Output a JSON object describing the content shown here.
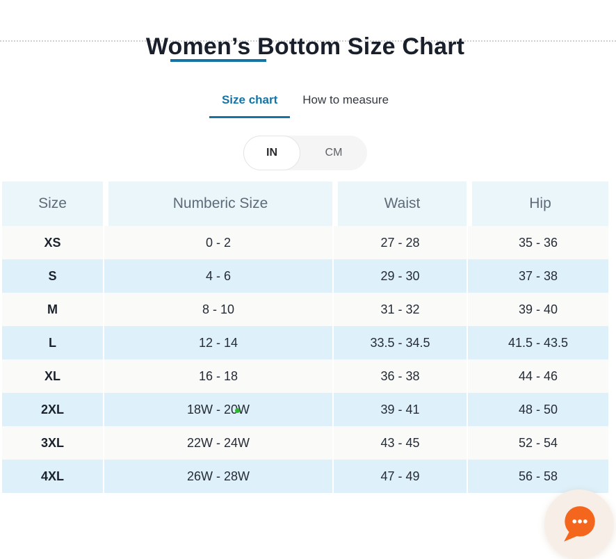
{
  "page": {
    "title": "Women’s Bottom Size Chart"
  },
  "tabs": [
    {
      "label": "Size chart",
      "active": true
    },
    {
      "label": "How to measure",
      "active": false
    }
  ],
  "unit_toggle": {
    "options": [
      {
        "label": "IN",
        "selected": true
      },
      {
        "label": "CM",
        "selected": false
      }
    ]
  },
  "size_table": {
    "headers": [
      "Size",
      "Numberic Size",
      "Waist",
      "Hip"
    ],
    "rows": [
      {
        "size": "XS",
        "numeric": "0 - 2",
        "waist": "27 - 28",
        "hip": "35 - 36"
      },
      {
        "size": "S",
        "numeric": "4 - 6",
        "waist": "29 - 30",
        "hip": "37 - 38"
      },
      {
        "size": "M",
        "numeric": "8 - 10",
        "waist": "31 - 32",
        "hip": "39 - 40"
      },
      {
        "size": "L",
        "numeric": "12 - 14",
        "waist": "33.5 - 34.5",
        "hip": "41.5 - 43.5"
      },
      {
        "size": "XL",
        "numeric": "16 - 18",
        "waist": "36 - 38",
        "hip": "44 - 46"
      },
      {
        "size": "2XL",
        "numeric": "18W - 20W",
        "waist": "39 - 41",
        "hip": "48 - 50"
      },
      {
        "size": "3XL",
        "numeric": "22W - 24W",
        "waist": "43 - 45",
        "hip": "52 - 54"
      },
      {
        "size": "4XL",
        "numeric": "26W - 28W",
        "waist": "47 - 49",
        "hip": "56 - 58"
      }
    ]
  },
  "chat_widget": {
    "icon": "chat-bubble-icon"
  },
  "colors": {
    "accent_blue": "#1573a5",
    "table_header_bg": "#ebf6fb",
    "row_blue": "#def0fa",
    "row_light": "#fafaf9",
    "chat_orange": "#f4651d",
    "chat_circle_bg": "#f7efe7",
    "green_dot": "#2eb82e"
  }
}
